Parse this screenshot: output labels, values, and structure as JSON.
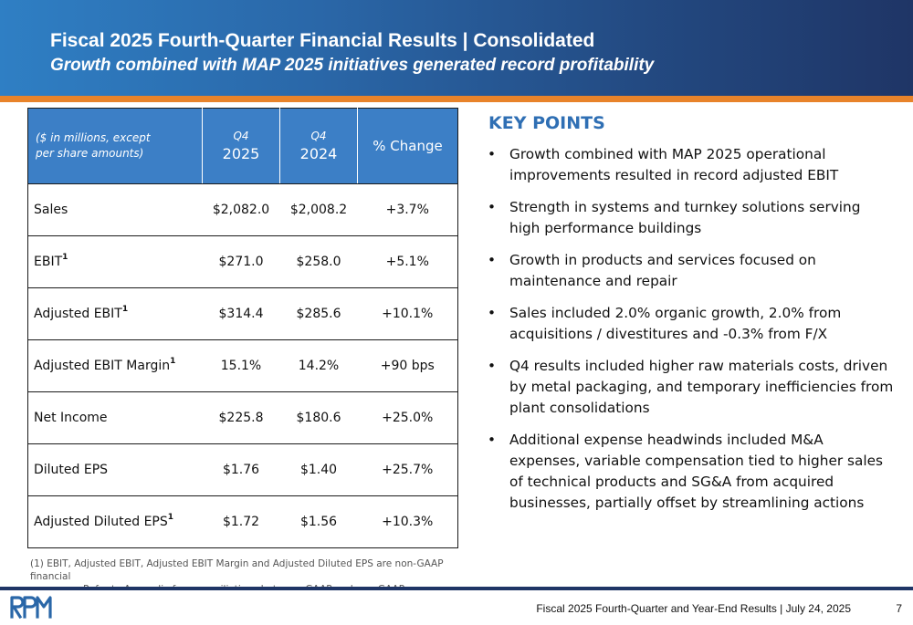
{
  "header": {
    "title": "Fiscal 2025 Fourth-Quarter Financial Results | Consolidated",
    "subtitle": "Growth combined with MAP 2025 initiatives generated record profitability"
  },
  "table": {
    "header": {
      "label_line1": "($ in millions, except",
      "label_line2": "per share amounts)",
      "q4_2025_small": "Q4",
      "q4_2025_year": "2025",
      "q4_2024_small": "Q4",
      "q4_2024_year": "2024",
      "pct_change": "% Change"
    },
    "rows": [
      {
        "label": "Sales",
        "sup": "",
        "q4_2025": "$2,082.0",
        "q4_2024": "$2,008.2",
        "change": "+3.7%"
      },
      {
        "label": "EBIT",
        "sup": "1",
        "q4_2025": "$271.0",
        "q4_2024": "$258.0",
        "change": "+5.1%"
      },
      {
        "label": "Adjusted EBIT",
        "sup": "1",
        "q4_2025": "$314.4",
        "q4_2024": "$285.6",
        "change": "+10.1%"
      },
      {
        "label": "Adjusted EBIT Margin",
        "sup": "1",
        "q4_2025": "15.1%",
        "q4_2024": "14.2%",
        "change": "+90 bps"
      },
      {
        "label": "Net Income",
        "sup": "",
        "q4_2025": "$225.8",
        "q4_2024": "$180.6",
        "change": "+25.0%"
      },
      {
        "label": "Diluted EPS",
        "sup": "",
        "q4_2025": "$1.76",
        "q4_2024": "$1.40",
        "change": "+25.7%"
      },
      {
        "label": "Adjusted Diluted EPS",
        "sup": "1",
        "q4_2025": "$1.72",
        "q4_2024": "$1.56",
        "change": "+10.3%"
      }
    ]
  },
  "footnote": {
    "line1": "(1) EBIT, Adjusted EBIT, Adjusted EBIT Margin and Adjusted Diluted EPS are non-GAAP financial",
    "line2": "measures. Refer to Appendix for reconciliations between GAAP and non-GAAP measures."
  },
  "key_points": {
    "title": "KEY POINTS",
    "items": [
      "Growth combined with MAP 2025 operational improvements resulted in record adjusted EBIT",
      "Strength in systems and turnkey solutions serving high performance buildings",
      "Growth in products and services focused on maintenance and repair",
      "Sales included 2.0% organic growth, 2.0% from acquisitions / divestitures and -0.3% from F/X",
      "Q4 results included higher raw materials costs, driven by metal packaging, and temporary inefficiencies from plant consolidations",
      "Additional expense headwinds included M&A expenses, variable compensation tied to higher sales of technical products and SG&A from acquired businesses, partially offset by streamlining actions"
    ]
  },
  "footer": {
    "logo_text": "RPM",
    "text": "Fiscal 2025 Fourth-Quarter and Year-End Results | July 24, 2025",
    "page": "7"
  },
  "colors": {
    "header_blue": "#2a67a8",
    "accent_orange": "#e8832a",
    "table_header_blue": "#3c7fc6",
    "key_points_blue": "#2f6fb4",
    "footer_navy": "#1f3566"
  }
}
